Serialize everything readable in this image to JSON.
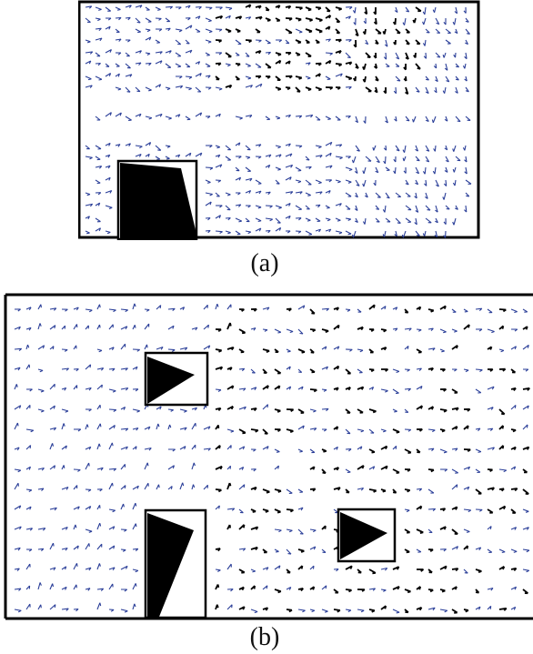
{
  "figure": {
    "panel_a": {
      "caption": "(a)"
    },
    "panel_b": {
      "caption": "(b)"
    }
  },
  "colors": {
    "glyph_blue": "#2a3e98",
    "glyph_black": "#000000",
    "frame": "#000000",
    "background": "#ffffff"
  }
}
